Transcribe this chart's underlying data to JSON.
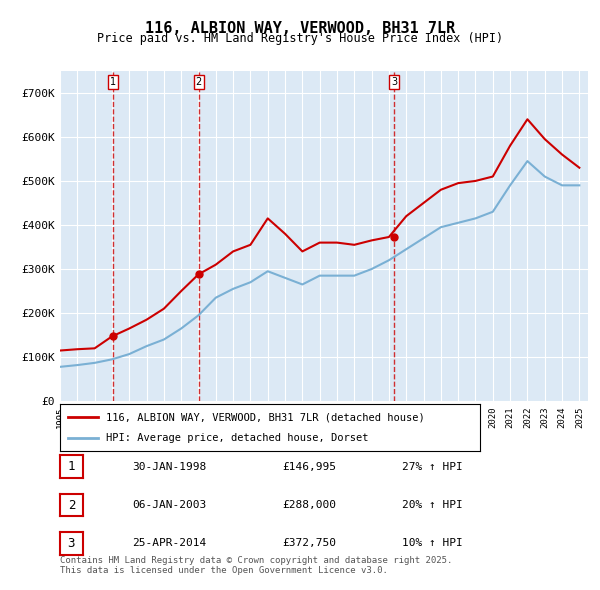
{
  "title": "116, ALBION WAY, VERWOOD, BH31 7LR",
  "subtitle": "Price paid vs. HM Land Registry's House Price Index (HPI)",
  "xlabel": "",
  "ylabel": "",
  "ylim": [
    0,
    750000
  ],
  "yticks": [
    0,
    100000,
    200000,
    300000,
    400000,
    500000,
    600000,
    700000
  ],
  "ytick_labels": [
    "£0",
    "£100K",
    "£200K",
    "£300K",
    "£400K",
    "£500K",
    "£600K",
    "£700K"
  ],
  "background_color": "#dce9f5",
  "plot_bg_color": "#dce9f5",
  "grid_color": "#ffffff",
  "sale_color": "#cc0000",
  "hpi_color": "#7ab0d4",
  "vline_color": "#cc0000",
  "legend_label_sale": "116, ALBION WAY, VERWOOD, BH31 7LR (detached house)",
  "legend_label_hpi": "HPI: Average price, detached house, Dorset",
  "sales": [
    {
      "date": "1998-01-30",
      "price": 146995,
      "label": "1"
    },
    {
      "date": "2003-01-06",
      "price": 288000,
      "label": "2"
    },
    {
      "date": "2014-04-25",
      "price": 372750,
      "label": "3"
    }
  ],
  "sale_table": [
    {
      "num": "1",
      "date": "30-JAN-1998",
      "price": "£146,995",
      "hpi": "27% ↑ HPI"
    },
    {
      "num": "2",
      "date": "06-JAN-2003",
      "price": "£288,000",
      "hpi": "20% ↑ HPI"
    },
    {
      "num": "3",
      "date": "25-APR-2014",
      "price": "£372,750",
      "hpi": "10% ↑ HPI"
    }
  ],
  "footer": "Contains HM Land Registry data © Crown copyright and database right 2025.\nThis data is licensed under the Open Government Licence v3.0.",
  "hpi_data": {
    "years": [
      1995,
      1996,
      1997,
      1998,
      1999,
      2000,
      2001,
      2002,
      2003,
      2004,
      2005,
      2006,
      2007,
      2008,
      2009,
      2010,
      2011,
      2012,
      2013,
      2014,
      2015,
      2016,
      2017,
      2018,
      2019,
      2020,
      2021,
      2022,
      2023,
      2024,
      2025
    ],
    "values": [
      78000,
      82000,
      87000,
      95000,
      107000,
      125000,
      140000,
      165000,
      195000,
      235000,
      255000,
      270000,
      295000,
      280000,
      265000,
      285000,
      285000,
      285000,
      300000,
      320000,
      345000,
      370000,
      395000,
      405000,
      415000,
      430000,
      490000,
      545000,
      510000,
      490000,
      490000
    ]
  },
  "sale_line_data": {
    "years": [
      1995,
      1996,
      1997,
      1998,
      1999,
      2000,
      2001,
      2002,
      2003,
      2004,
      2005,
      2006,
      2007,
      2008,
      2009,
      2010,
      2011,
      2012,
      2013,
      2014,
      2015,
      2016,
      2017,
      2018,
      2019,
      2020,
      2021,
      2022,
      2023,
      2024,
      2025
    ],
    "values": [
      115000,
      118000,
      120000,
      146995,
      165000,
      185000,
      210000,
      250000,
      288000,
      310000,
      340000,
      355000,
      415000,
      380000,
      340000,
      360000,
      360000,
      355000,
      365000,
      372750,
      420000,
      450000,
      480000,
      495000,
      500000,
      510000,
      580000,
      640000,
      595000,
      560000,
      530000
    ]
  }
}
